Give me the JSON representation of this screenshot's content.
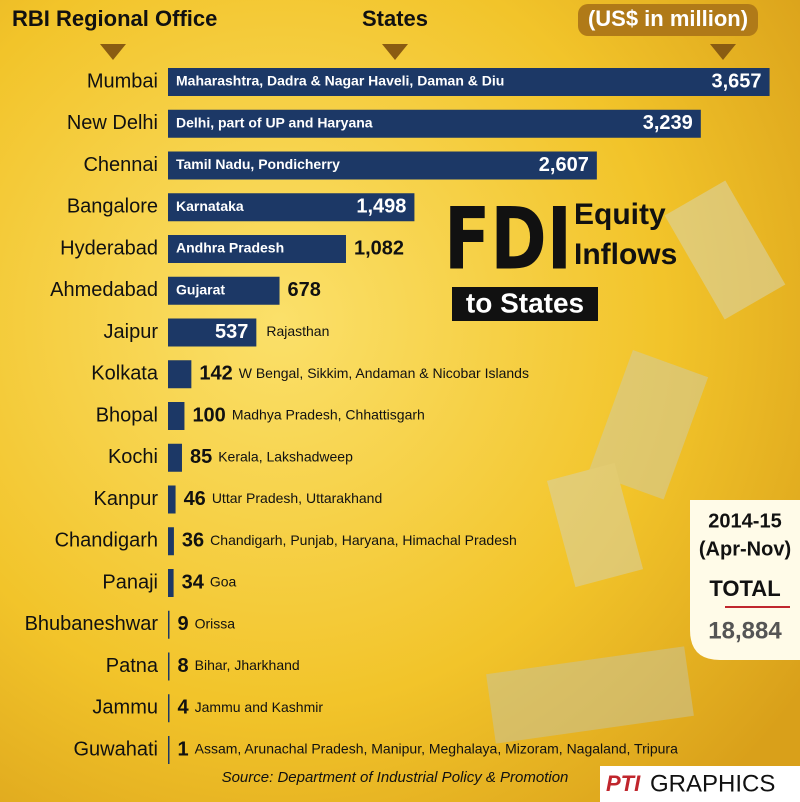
{
  "chart_data": {
    "type": "bar",
    "orientation": "horizontal",
    "headers": {
      "office": "RBI Regional Office",
      "states": "States",
      "unit": "(US$ in million)"
    },
    "title": "FDI",
    "title_side": [
      "Equity",
      "Inflows"
    ],
    "subtitle": "to States",
    "categories": [
      "Mumbai",
      "New Delhi",
      "Chennai",
      "Bangalore",
      "Hyderabad",
      "Ahmedabad",
      "Jaipur",
      "Kolkata",
      "Bhopal",
      "Kochi",
      "Kanpur",
      "Chandigarh",
      "Panaji",
      "Bhubaneshwar",
      "Patna",
      "Jammu",
      "Guwahati"
    ],
    "states": [
      "Maharashtra, Dadra & Nagar Haveli, Daman & Diu",
      "Delhi, part of UP and Haryana",
      "Tamil Nadu, Pondicherry",
      "Karnataka",
      "Andhra Pradesh",
      "Gujarat",
      "Rajasthan",
      "W Bengal, Sikkim, Andaman & Nicobar Islands",
      "Madhya Pradesh, Chhattisgarh",
      "Kerala, Lakshadweep",
      "Uttar Pradesh, Uttarakhand",
      "Chandigarh, Punjab, Haryana, Himachal Pradesh",
      "Goa",
      "Orissa",
      "Bihar, Jharkhand",
      "Jammu and Kashmir",
      "Assam, Arunachal Pradesh, Manipur, Meghalaya, Mizoram, Nagaland, Tripura"
    ],
    "values": [
      3657,
      3239,
      2607,
      1498,
      1082,
      678,
      537,
      142,
      100,
      85,
      46,
      36,
      34,
      9,
      8,
      4,
      1
    ],
    "value_labels": [
      "3,657",
      "3,239",
      "2,607",
      "1,498",
      "1,082",
      "678",
      "537",
      "142",
      "100",
      "85",
      "46",
      "36",
      "34",
      "9",
      "8",
      "4",
      "1"
    ],
    "color": "#1c3866",
    "period": "2014-15",
    "period_months": "(Apr-Nov)",
    "total_label": "TOTAL",
    "total": {
      "value": 18884,
      "label": "18,884"
    },
    "source": "Source: Department of Industrial Policy & Promotion",
    "credit": [
      "PTI",
      "GRAPHICS"
    ]
  }
}
